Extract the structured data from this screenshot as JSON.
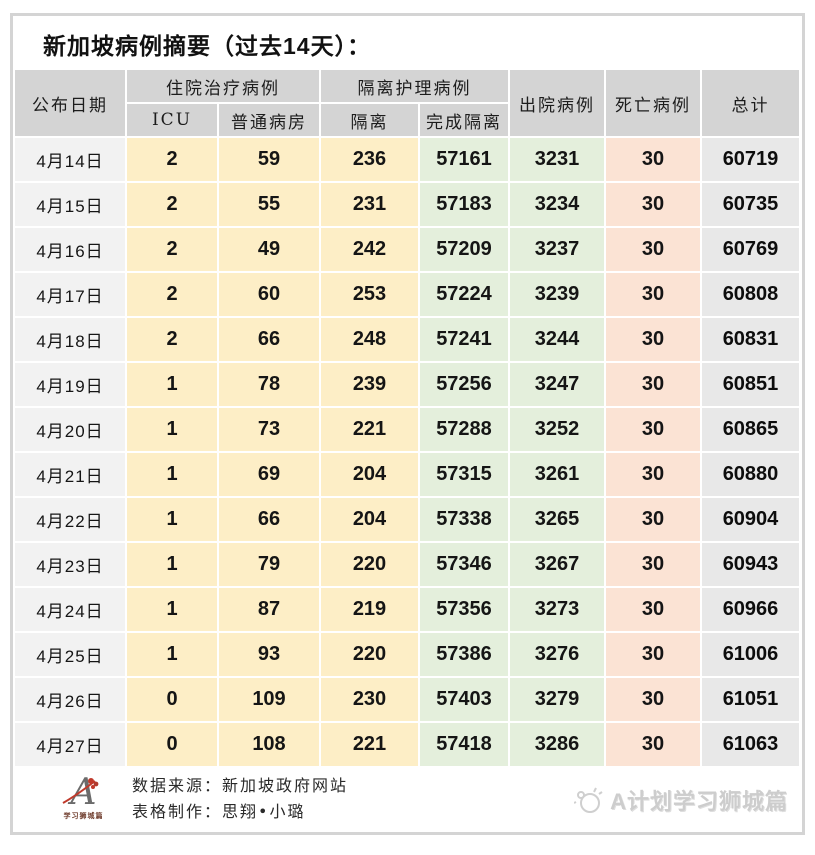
{
  "page_title": "新加坡病例摘要（过去14天）：",
  "header": {
    "date": "公布日期",
    "hospitalized_group": "住院治疗病例",
    "icu": "ICU",
    "general_ward": "普通病房",
    "isolation_group": "隔离护理病例",
    "isolation": "隔离",
    "isolation_completed": "完成隔离",
    "discharged": "出院病例",
    "deaths": "死亡病例",
    "total": "总计"
  },
  "chart_data": {
    "type": "table",
    "title": "新加坡病例摘要（过去14天）：",
    "column_groups": [
      "公布日期",
      "住院治疗病例",
      "隔离护理病例",
      "出院病例",
      "死亡病例",
      "总计"
    ],
    "columns": [
      "公布日期",
      "ICU",
      "普通病房",
      "隔离",
      "完成隔离",
      "出院病例",
      "死亡病例",
      "总计"
    ],
    "rows": [
      [
        "4月14日",
        "2",
        "59",
        "236",
        "57161",
        "3231",
        "30",
        "60719"
      ],
      [
        "4月15日",
        "2",
        "55",
        "231",
        "57183",
        "3234",
        "30",
        "60735"
      ],
      [
        "4月16日",
        "2",
        "49",
        "242",
        "57209",
        "3237",
        "30",
        "60769"
      ],
      [
        "4月17日",
        "2",
        "60",
        "253",
        "57224",
        "3239",
        "30",
        "60808"
      ],
      [
        "4月18日",
        "2",
        "66",
        "248",
        "57241",
        "3244",
        "30",
        "60831"
      ],
      [
        "4月19日",
        "1",
        "78",
        "239",
        "57256",
        "3247",
        "30",
        "60851"
      ],
      [
        "4月20日",
        "1",
        "73",
        "221",
        "57288",
        "3252",
        "30",
        "60865"
      ],
      [
        "4月21日",
        "1",
        "69",
        "204",
        "57315",
        "3261",
        "30",
        "60880"
      ],
      [
        "4月22日",
        "1",
        "66",
        "204",
        "57338",
        "3265",
        "30",
        "60904"
      ],
      [
        "4月23日",
        "1",
        "79",
        "220",
        "57346",
        "3267",
        "30",
        "60943"
      ],
      [
        "4月24日",
        "1",
        "87",
        "219",
        "57356",
        "3273",
        "30",
        "60966"
      ],
      [
        "4月25日",
        "1",
        "93",
        "220",
        "57386",
        "3276",
        "30",
        "61006"
      ],
      [
        "4月26日",
        "0",
        "109",
        "230",
        "57403",
        "3279",
        "30",
        "61051"
      ],
      [
        "4月27日",
        "0",
        "108",
        "221",
        "57418",
        "3286",
        "30",
        "61063"
      ]
    ]
  },
  "footer": {
    "logo_letter": "A",
    "logo_caption": "学习狮城篇",
    "source_line": "数据来源：新加坡政府网站",
    "credit_line": "表格制作：思翔•小璐",
    "watermark": "A计划学习狮城篇"
  },
  "colors": {
    "header_bg": "#d4d4d4",
    "date_col_bg": "#f2f2f2",
    "hospital_col_bg": "#fdeec6",
    "isolation_done_bg": "#e4efdc",
    "deaths_col_bg": "#fbe3d4",
    "total_col_bg": "#e8e8e8",
    "accent_red": "#c0392b",
    "watermark_gray": "#cdcdcd"
  }
}
